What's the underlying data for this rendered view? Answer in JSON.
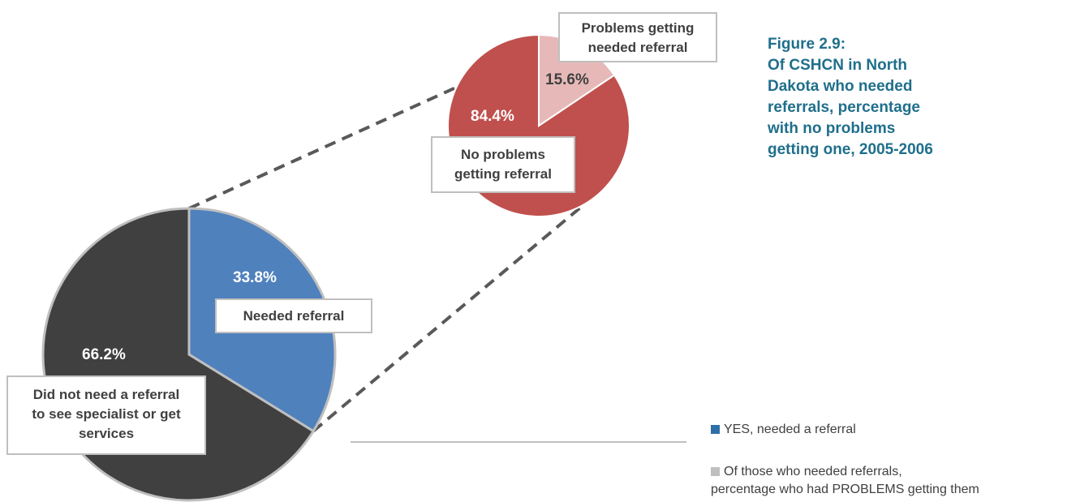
{
  "colors": {
    "yes": "#4f81bd",
    "no": "#404040",
    "no_problems": "#c0504d",
    "problems": "#e6b9b8",
    "edge": "#bfbfbf",
    "connector": "#595959",
    "title": "#1f6f8b"
  },
  "title_lines": [
    "Figure 2.9:",
    "Of CSHCN in North",
    "Dakota who needed",
    "referrals, percentage",
    "with no problems",
    "getting one, 2005-2006"
  ],
  "labels": {
    "needed_pct": "33.8%",
    "needed": "Needed referral",
    "not_needed_pct": "66.2%",
    "not_needed_lines": [
      "Did not need a referral",
      "to see specialist or get",
      "services"
    ],
    "problems_pct": "15.6%",
    "problems_lines": [
      "Problems getting",
      "needed referral"
    ],
    "no_problems_pct": "84.4%",
    "no_problems_lines": [
      "No problems",
      "getting referral"
    ]
  },
  "legend": {
    "yes": "YES, needed a referral",
    "problems_line1": "Of those who needed referrals,",
    "problems_line2": "percentage who had PROBLEMS getting them"
  },
  "chart_data": [
    {
      "type": "pie",
      "categories": [
        "Needed referral",
        "Did not need a referral to see specialist or get services"
      ],
      "values": [
        33.8,
        66.2
      ]
    },
    {
      "type": "pie",
      "categories": [
        "Problems getting needed referral",
        "No problems getting referral"
      ],
      "values": [
        15.6,
        84.4
      ]
    }
  ]
}
